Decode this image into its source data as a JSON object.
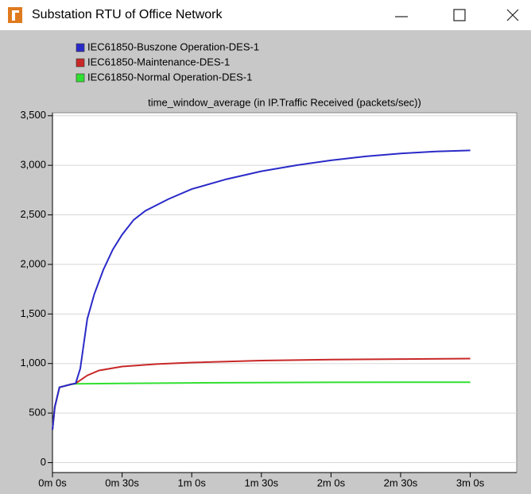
{
  "window": {
    "title": "Substation RTU  of Office Network"
  },
  "chart_data": {
    "type": "line",
    "title": "time_window_average (in IP.Traffic Received (packets/sec))",
    "series": [
      {
        "name": "IEC61850-Buszone Operation-DES-1",
        "color": "#2a2ac8",
        "x": [
          0,
          1,
          3,
          8,
          10,
          12,
          15,
          18,
          22,
          26,
          30,
          35,
          40,
          50,
          60,
          75,
          90,
          105,
          120,
          135,
          150,
          165,
          180
        ],
        "values": [
          330,
          560,
          760,
          790,
          800,
          950,
          1450,
          1700,
          1950,
          2150,
          2300,
          2450,
          2540,
          2660,
          2760,
          2860,
          2940,
          3000,
          3050,
          3090,
          3120,
          3140,
          3150
        ]
      },
      {
        "name": "IEC61850-Maintenance-DES-1",
        "color": "#c82828",
        "x": [
          0,
          1,
          3,
          8,
          10,
          15,
          20,
          30,
          45,
          60,
          90,
          120,
          150,
          180
        ],
        "values": [
          330,
          560,
          760,
          790,
          800,
          880,
          930,
          970,
          995,
          1010,
          1030,
          1040,
          1045,
          1050
        ]
      },
      {
        "name": "IEC61850-Normal Operation-DES-1",
        "color": "#30e030",
        "x": [
          0,
          1,
          3,
          8,
          10,
          30,
          60,
          120,
          180
        ],
        "values": [
          330,
          560,
          760,
          790,
          795,
          800,
          805,
          810,
          812
        ]
      }
    ],
    "xlim": [
      0,
      200
    ],
    "ylim": [
      -100,
      3530
    ],
    "xticks": [
      {
        "value": 0,
        "label": "0m 0s"
      },
      {
        "value": 30,
        "label": "0m 30s"
      },
      {
        "value": 60,
        "label": "1m 0s"
      },
      {
        "value": 90,
        "label": "1m 30s"
      },
      {
        "value": 120,
        "label": "2m 0s"
      },
      {
        "value": 150,
        "label": "2m 30s"
      },
      {
        "value": 180,
        "label": "3m 0s"
      }
    ],
    "yticks": [
      0,
      500,
      {
        "value": 1000,
        "label": "1,000"
      },
      {
        "value": 1500,
        "label": "1,500"
      },
      {
        "value": 2000,
        "label": "2,000"
      },
      {
        "value": 2500,
        "label": "2,500"
      },
      {
        "value": 3000,
        "label": "3,000"
      },
      {
        "value": 3500,
        "label": "3,500"
      }
    ],
    "grid": true
  }
}
